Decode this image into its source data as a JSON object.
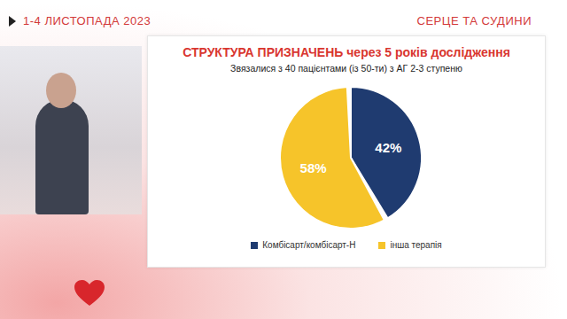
{
  "header": {
    "date": "1-4 ЛИСТОПАДА 2023",
    "event": "СЕРЦЕ ТА СУДИНИ"
  },
  "chart_data": {
    "type": "pie",
    "title": "СТРУКТУРА ПРИЗНАЧЕНЬ через 5 років дослідження",
    "subtitle": "Звязалися з 40 пацієнтами (із 50-ти) з АГ 2-3 ступеню",
    "categories": [
      "Комбісарт/комбісарт-Н",
      "інша терапія"
    ],
    "values": [
      42,
      58
    ],
    "value_labels": [
      "42%",
      "58%"
    ],
    "colors": [
      "#1f3b70",
      "#f6c42a"
    ],
    "data_labels": true,
    "legend": "bottom"
  }
}
